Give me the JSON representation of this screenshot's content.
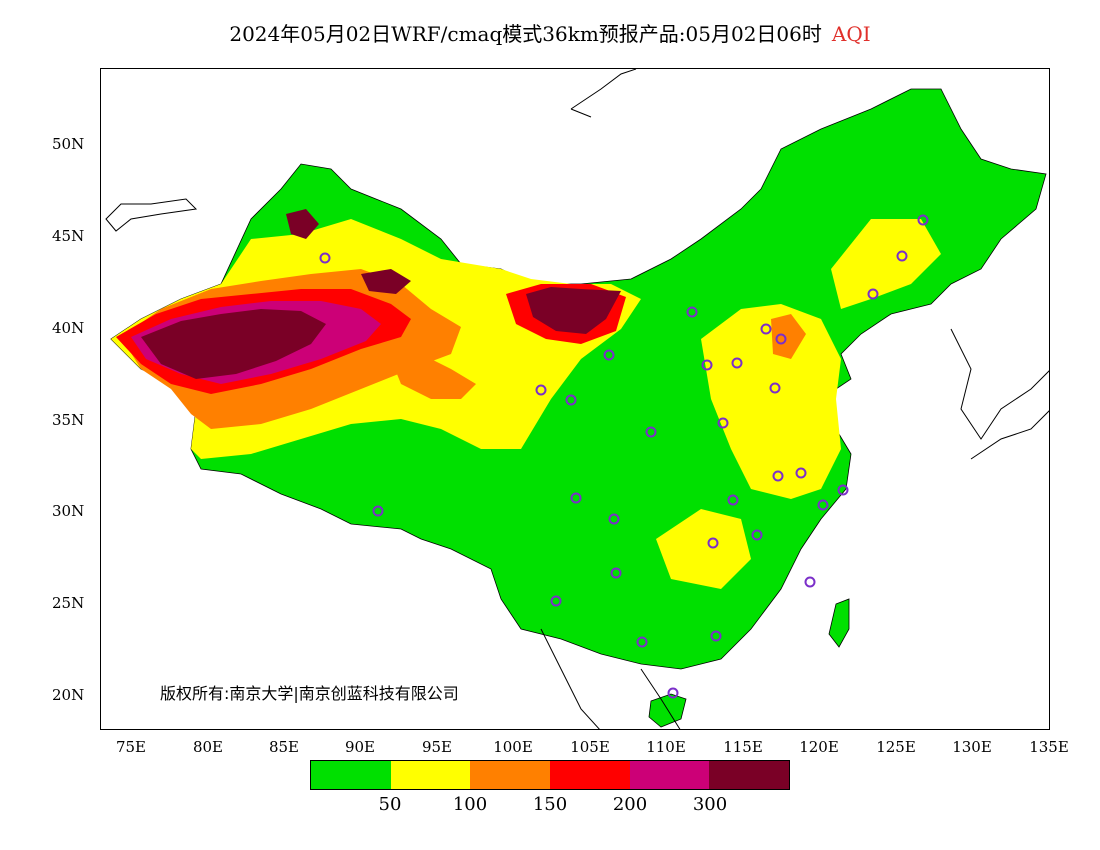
{
  "title": {
    "main": "2024年05月02日WRF/cmaq模式36km预报产品:05月02日06时",
    "variable": "AQI"
  },
  "copyright": "版权所有:南京大学|南京创蓝科技有限公司",
  "axes": {
    "y_labels": [
      "50N",
      "45N",
      "40N",
      "35N",
      "30N",
      "25N",
      "20N"
    ],
    "x_labels": [
      "75E",
      "80E",
      "85E",
      "90E",
      "95E",
      "100E",
      "105E",
      "110E",
      "115E",
      "120E",
      "125E",
      "130E",
      "135E"
    ]
  },
  "legend": {
    "colors": [
      "#00e000",
      "#ffff00",
      "#ff8000",
      "#ff0000",
      "#cc0077",
      "#7a0026"
    ],
    "labels": [
      "50",
      "100",
      "150",
      "200",
      "300"
    ]
  },
  "colors": {
    "good": "#00e000",
    "moderate": "#ffff00",
    "usg": "#ff8000",
    "unhealthy": "#ff0000",
    "very_unhealthy": "#cc0077",
    "hazardous": "#7a0026",
    "city_marker": "#7b2fc9"
  }
}
